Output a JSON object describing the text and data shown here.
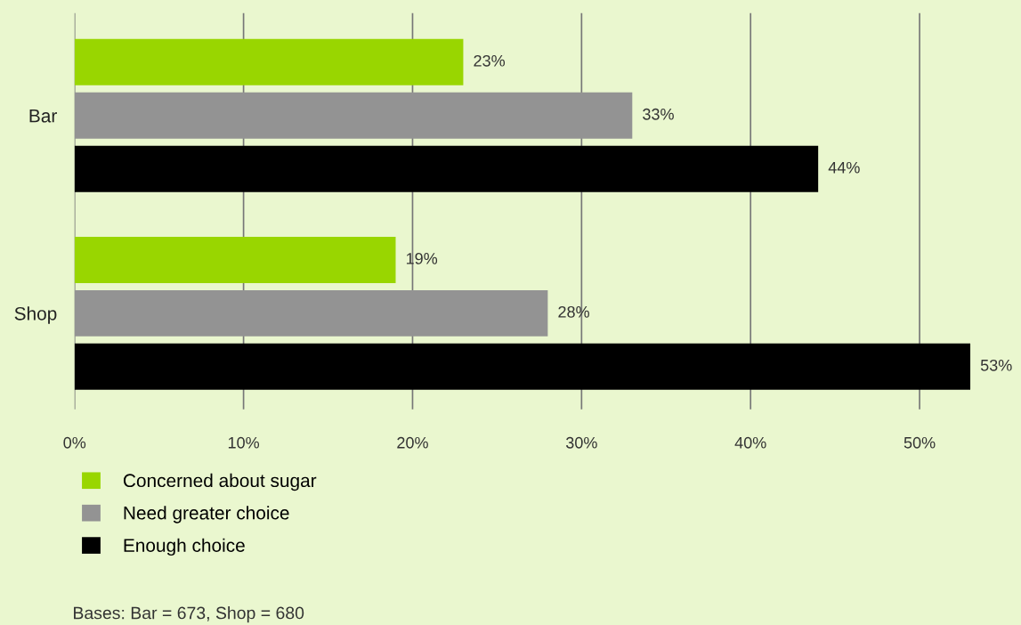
{
  "chart_data": {
    "type": "bar",
    "orientation": "horizontal",
    "categories": [
      "Bar",
      "Shop"
    ],
    "series": [
      {
        "name": "Concerned about sugar",
        "color": "#99d600",
        "values": [
          23,
          19
        ],
        "value_labels": [
          "23%",
          "19%"
        ]
      },
      {
        "name": "Need greater choice",
        "color": "#939393",
        "values": [
          33,
          28
        ],
        "value_labels": [
          "33%",
          "28%"
        ]
      },
      {
        "name": "Enough choice",
        "color": "#000000",
        "values": [
          44,
          53
        ],
        "value_labels": [
          "44%",
          "53%"
        ]
      }
    ],
    "xlim": [
      0,
      56
    ],
    "xticks": [
      {
        "value": 0,
        "label": "0%"
      },
      {
        "value": 10,
        "label": "10%"
      },
      {
        "value": 20,
        "label": "20%"
      },
      {
        "value": 30,
        "label": "30%"
      },
      {
        "value": 40,
        "label": "40%"
      },
      {
        "value": 50,
        "label": "50%"
      }
    ],
    "grid": "x",
    "legend": "bottom left",
    "annotations": [
      "Bases: Bar = 673, Shop = 680"
    ]
  }
}
